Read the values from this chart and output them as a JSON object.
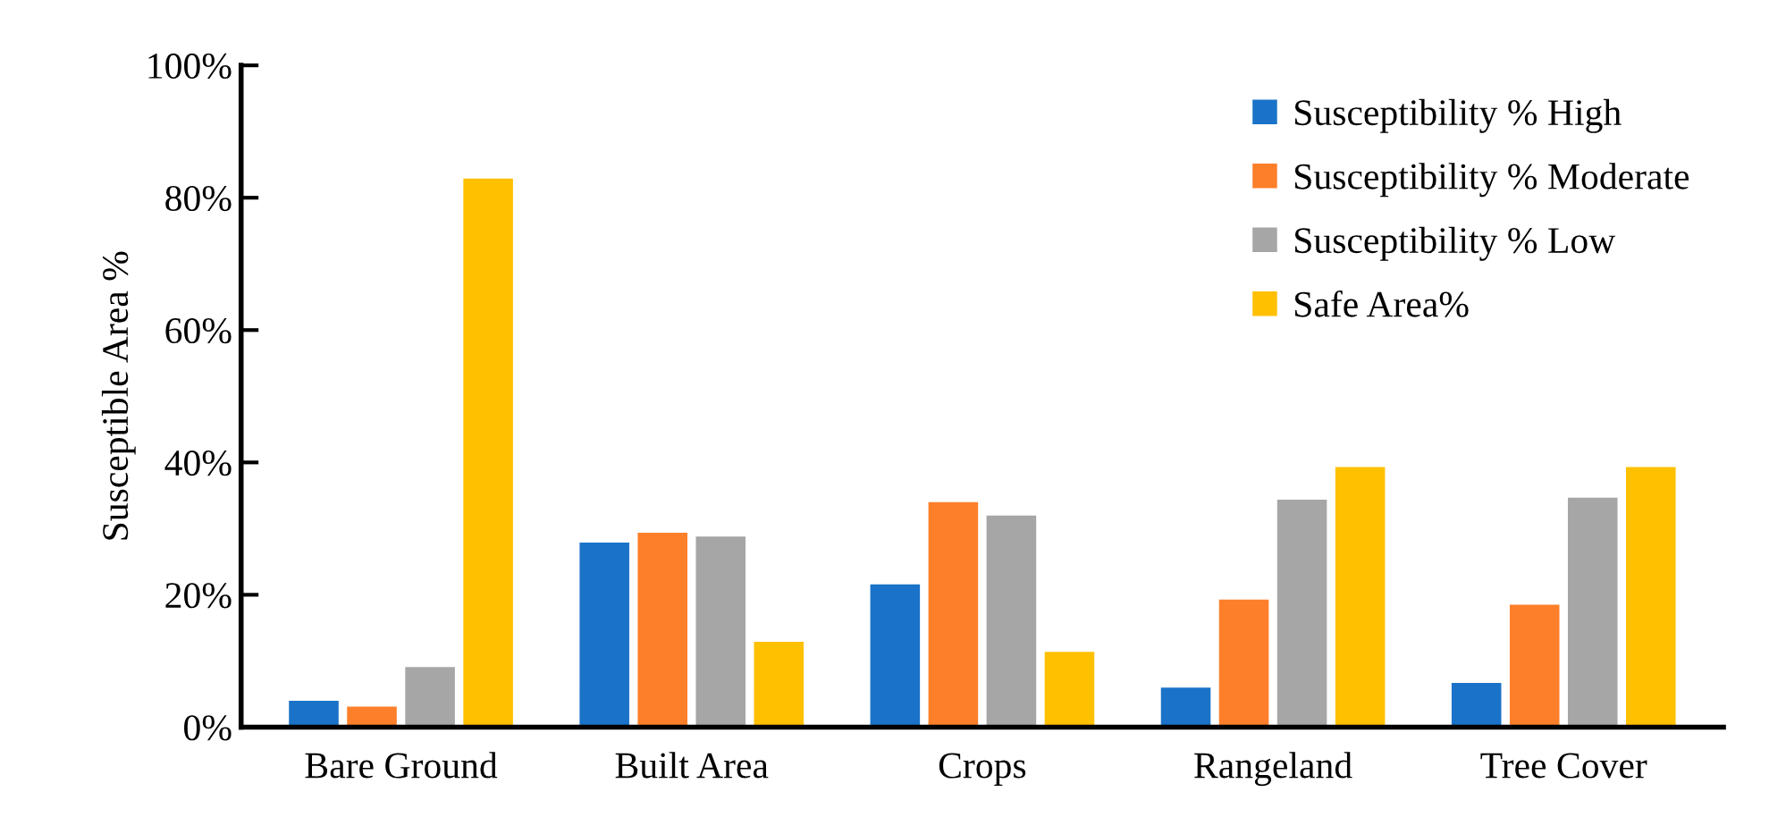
{
  "chart_data": {
    "type": "bar",
    "ylabel": "Susceptible Area %",
    "categories": [
      "Bare Ground",
      "Built Area",
      "Crops",
      "Rangeland",
      "Tree Cover"
    ],
    "series": [
      {
        "name": "Susceptibility % High",
        "color": "#1a73c8",
        "values": [
          4.1,
          28.0,
          21.7,
          6.1,
          6.8
        ]
      },
      {
        "name": "Susceptibility % Moderate",
        "color": "#fe7f2a",
        "values": [
          3.2,
          29.5,
          34.1,
          19.4,
          18.6
        ]
      },
      {
        "name": "Susceptibility % Low",
        "color": "#a6a6a6",
        "values": [
          9.2,
          28.9,
          32.1,
          34.5,
          34.8
        ]
      },
      {
        "name": "Safe Area%",
        "color": "#ffc000",
        "values": [
          83.0,
          13.0,
          11.5,
          39.4,
          39.4
        ]
      }
    ],
    "ylim": [
      0,
      100
    ],
    "yticks": [
      {
        "value": 0,
        "label": "0%"
      },
      {
        "value": 20,
        "label": "20%"
      },
      {
        "value": 40,
        "label": "40%"
      },
      {
        "value": 60,
        "label": "60%"
      },
      {
        "value": 80,
        "label": "80%"
      },
      {
        "value": 100,
        "label": "100%"
      }
    ],
    "grid": false,
    "legend": "top right"
  }
}
